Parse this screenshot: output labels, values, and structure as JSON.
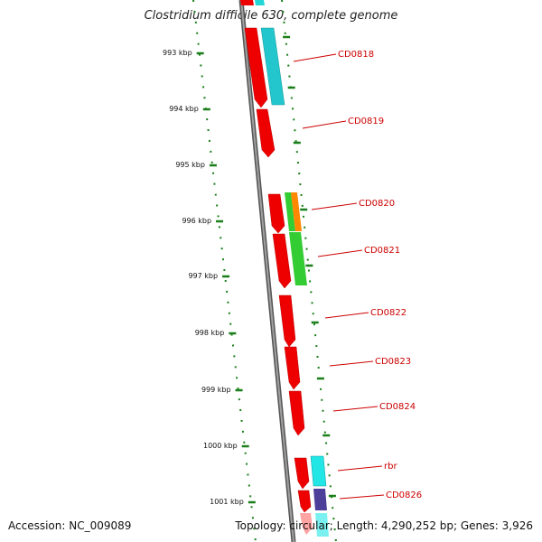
{
  "title": "Clostridium difficile 630, complete genome",
  "footer": {
    "accession": "Accession: NC_009089",
    "summary": "Topology: circular; Length: 4,290,252 bp; Genes: 3,926"
  },
  "colors": {
    "backbone": "#888888",
    "tick_dots": "#1a7f1a",
    "label_red": "#cc0000",
    "gene_red": "#ee0000",
    "gene_cyan": "#22d6d6",
    "gene_green": "#33cc33",
    "gene_orange": "#ff8800",
    "gene_purple": "#4b3f9a"
  },
  "ticks": [
    {
      "label": "993 kbp"
    },
    {
      "label": "994 kbp"
    },
    {
      "label": "995 kbp"
    },
    {
      "label": "996 kbp"
    },
    {
      "label": "997 kbp"
    },
    {
      "label": "998 kbp"
    },
    {
      "label": "999 kbp"
    },
    {
      "label": "1000 kbp"
    },
    {
      "label": "1001 kbp"
    }
  ],
  "gene_labels": [
    {
      "text": "CD0818"
    },
    {
      "text": "CD0819"
    },
    {
      "text": "CD0820"
    },
    {
      "text": "CD0821"
    },
    {
      "text": "CD0822"
    },
    {
      "text": "CD0823"
    },
    {
      "text": "CD0824"
    },
    {
      "text": "rbr"
    },
    {
      "text": "CD0826"
    }
  ]
}
